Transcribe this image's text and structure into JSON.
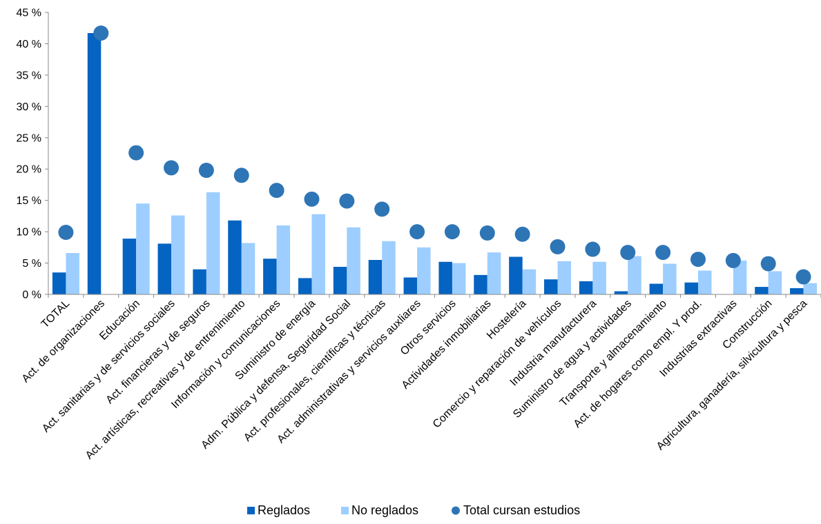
{
  "chart_data": {
    "type": "bar",
    "title": "",
    "xlabel": "",
    "ylabel": "",
    "ylim": [
      0,
      45
    ],
    "yticks": [
      "0 %",
      "5 %",
      "10 %",
      "15 %",
      "20 %",
      "25 %",
      "30 %",
      "35 %",
      "40 %",
      "45 %"
    ],
    "grid": false,
    "legend_position": "bottom",
    "categories": [
      "TOTAL",
      "Act. de organizaciones",
      "Educación",
      "Act. sanitarias y de servicios sociales",
      "Act. financieras y de seguros",
      "Act. artísticas, recreativas y de entrenimiento",
      "Información y comunicaciones",
      "Suministro de energía",
      "Adm. Pública y defensa, Seguridad Social",
      "Act. profesionales, científicas y técnicas",
      "Act. administrativas y servicios auxliares",
      "Otros servicios",
      "Actividades inmobiliarias",
      "Hostelería",
      "Comercio y reparación de vehículos",
      "Industria manufacturera",
      "Suministro de agua y actividades",
      "Transporte y almacenamiento",
      "Act. de hogares como empl. Y prod.",
      "Industrias extractivas",
      "Construcción",
      "Agricultura, ganadería, silvicultura y pesca"
    ],
    "series": [
      {
        "name": "Reglados",
        "kind": "bar",
        "color": "#0563C1",
        "values": [
          3.5,
          41.7,
          8.9,
          8.1,
          4.0,
          11.8,
          5.7,
          2.6,
          4.4,
          5.5,
          2.7,
          5.2,
          3.1,
          6.0,
          2.4,
          2.1,
          0.5,
          1.7,
          1.9,
          0.0,
          1.2,
          1.0
        ]
      },
      {
        "name": "No reglados",
        "kind": "bar",
        "color": "#9DCEFF",
        "values": [
          6.6,
          0.0,
          14.5,
          12.6,
          16.3,
          8.2,
          11.0,
          12.8,
          10.7,
          8.5,
          7.5,
          5.0,
          6.7,
          4.0,
          5.3,
          5.2,
          6.1,
          4.9,
          3.8,
          5.4,
          3.7,
          1.8
        ]
      },
      {
        "name": "Total cursan estudios",
        "kind": "point",
        "color": "#2E75B6",
        "values": [
          9.9,
          41.7,
          22.6,
          20.2,
          19.8,
          19.0,
          16.6,
          15.2,
          14.9,
          13.6,
          10.0,
          10.0,
          9.8,
          9.6,
          7.6,
          7.2,
          6.7,
          6.7,
          5.6,
          5.4,
          4.9,
          2.8
        ]
      }
    ]
  }
}
